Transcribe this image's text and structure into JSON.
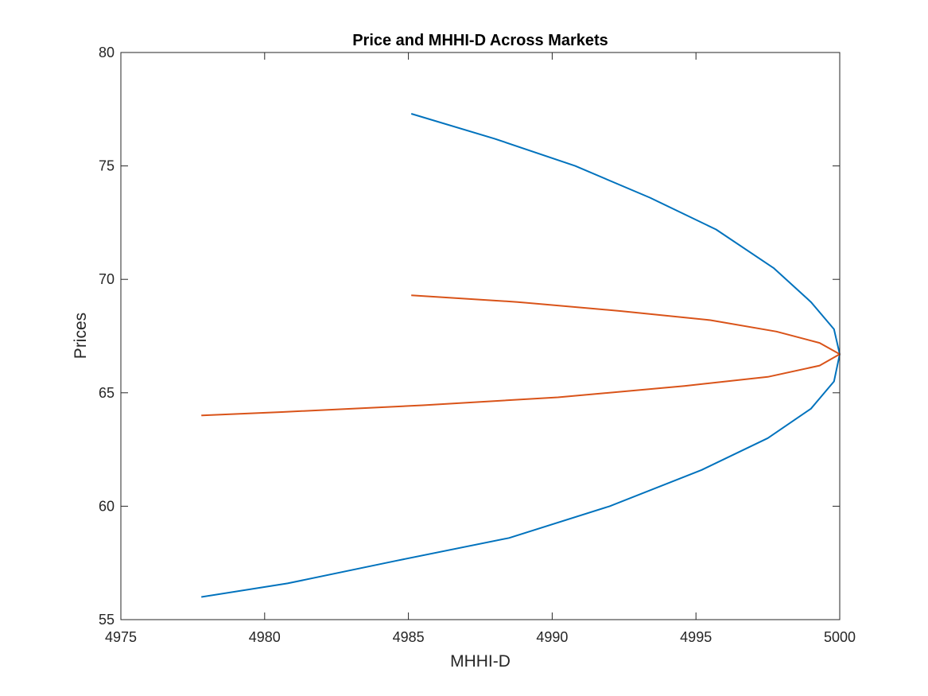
{
  "chart_data": {
    "type": "line",
    "title": "Price and MHHI-D Across Markets",
    "xlabel": "MHHI-D",
    "ylabel": "Prices",
    "xlim": [
      4975,
      5000
    ],
    "ylim": [
      55,
      80
    ],
    "xticks": [
      "4975",
      "4980",
      "4985",
      "4990",
      "4995",
      "5000"
    ],
    "yticks": [
      "55",
      "60",
      "65",
      "70",
      "75",
      "80"
    ],
    "grid": false,
    "legend": "none",
    "series": [
      {
        "color": "#0072BD",
        "x": [
          4985.1,
          4988.0,
          4990.8,
          4993.4,
          4995.7,
          4997.7,
          4999.0,
          4999.8,
          5000.0,
          4999.8,
          4999.0,
          4997.5,
          4995.2,
          4992.0,
          4988.5,
          4984.6,
          4980.8,
          4977.8
        ],
        "y": [
          77.3,
          76.2,
          75.0,
          73.6,
          72.2,
          70.5,
          69.0,
          67.8,
          66.7,
          65.5,
          64.3,
          63.0,
          61.6,
          60.0,
          58.6,
          57.6,
          56.6,
          56.0
        ]
      },
      {
        "color": "#D95319",
        "x": [
          4985.1,
          4988.8,
          4992.4,
          4995.5,
          4997.8,
          4999.3,
          5000.0,
          4999.3,
          4997.5,
          4994.6,
          4990.2,
          4985.5,
          4980.6,
          4977.8
        ],
        "y": [
          69.3,
          69.0,
          68.6,
          68.2,
          67.7,
          67.2,
          66.7,
          66.2,
          65.7,
          65.3,
          64.8,
          64.45,
          64.15,
          64.0
        ]
      }
    ]
  }
}
